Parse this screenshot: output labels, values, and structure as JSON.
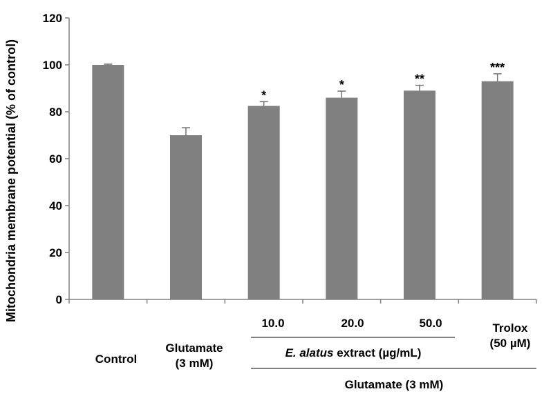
{
  "chart_data": {
    "type": "bar",
    "categories": [
      "Control",
      "Glutamate (3 mM)",
      "10.0",
      "20.0",
      "50.0",
      "Trolox (50 µM)"
    ],
    "values": [
      100,
      70,
      82.5,
      86,
      89,
      93
    ],
    "errors": [
      0.3,
      3.2,
      1.8,
      2.8,
      2.3,
      3.2
    ],
    "significance": [
      "",
      "",
      "*",
      "*",
      "**",
      "***"
    ],
    "category_labels": [
      [
        "Control"
      ],
      [
        "Glutamate",
        "(3 mM)"
      ],
      [
        "10.0"
      ],
      [
        "20.0"
      ],
      [
        "50.0"
      ],
      [
        "Trolox",
        "(50 µM)"
      ]
    ],
    "group_labels": {
      "extract_italic": "E. alatus",
      "extract_rest": " extract (µg/mL)",
      "glutamate": "Glutamate (3 mM)"
    },
    "ylabel": "Mitochondria membrane potential (% of control)",
    "ylim": [
      0,
      120
    ],
    "yticks": [
      0,
      20,
      40,
      60,
      80,
      100,
      120
    ],
    "colors": {
      "bar": "#808080",
      "axis": "#808080",
      "text": "#000000"
    }
  }
}
